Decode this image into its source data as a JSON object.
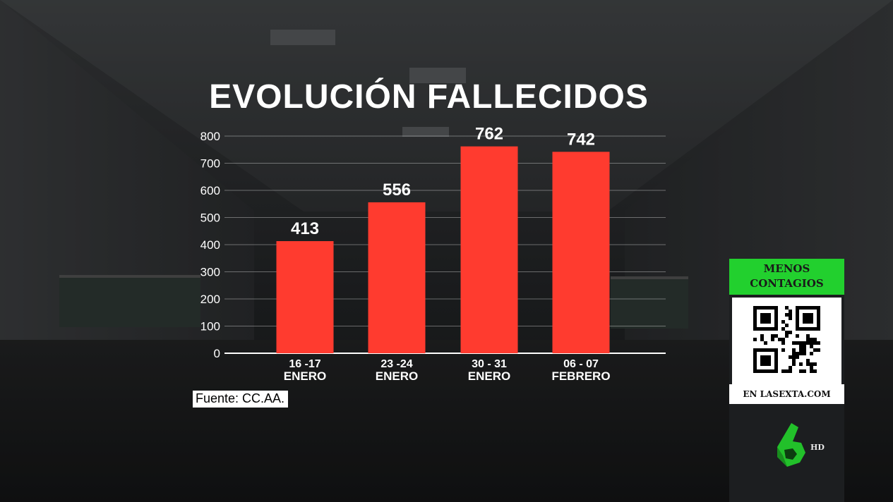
{
  "chart_data": {
    "type": "bar",
    "title": "EVOLUCIÓN FALLECIDOS",
    "categories": [
      [
        "16 -17",
        "ENERO"
      ],
      [
        "23 -24",
        "ENERO"
      ],
      [
        "30 - 31",
        "ENERO"
      ],
      [
        "06 - 07",
        "FEBRERO"
      ]
    ],
    "values": [
      413,
      556,
      762,
      742
    ],
    "ylim": [
      0,
      800
    ],
    "yticks": [
      0,
      100,
      200,
      300,
      400,
      500,
      600,
      700,
      800
    ],
    "grid": true,
    "bar_color": "#ff3b2f"
  },
  "source": "Fuente: CC.AA.",
  "side_panel": {
    "header_line1": "MENOS",
    "header_line2": "CONTAGIOS",
    "footer": "EN LASEXTA.COM",
    "header_color": "#22d02e"
  },
  "channel": {
    "logo_icon": "lasexta-6-logo-icon",
    "hd_label": "HD",
    "logo_color": "#22c02a"
  }
}
